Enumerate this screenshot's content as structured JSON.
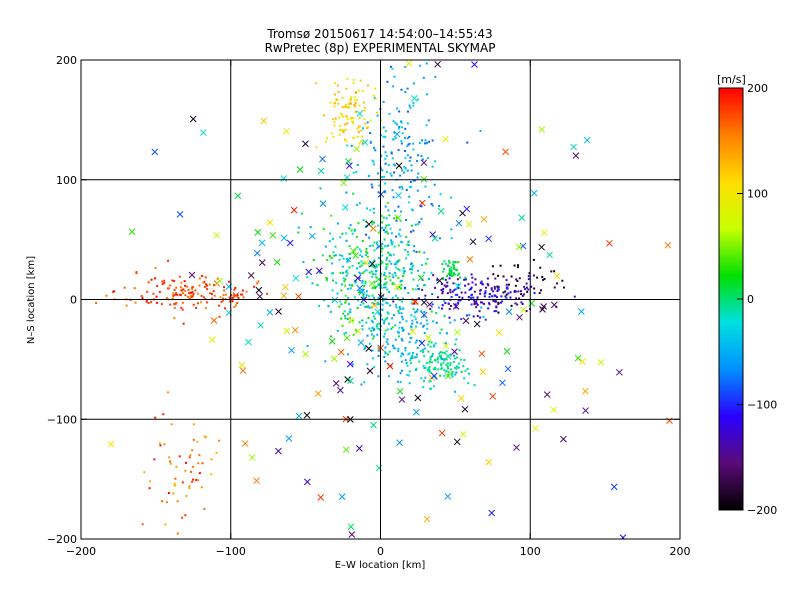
{
  "chart_data": {
    "type": "scatter",
    "title": "Tromsø 20150617 14:54:00–14:55:43",
    "subtitle": "RwPretec (8p) EXPERIMENTAL SKYMAP",
    "xlabel": "E–W location [km]",
    "ylabel": "N–S location [km]",
    "xlim": [
      -200,
      200
    ],
    "ylim": [
      -200,
      200
    ],
    "xticks": [
      -200,
      -100,
      0,
      100,
      200
    ],
    "yticks": [
      -200,
      -100,
      0,
      100,
      200
    ],
    "grid": true,
    "grid_values": {
      "x": [
        -100,
        0,
        100
      ],
      "y": [
        -100,
        0,
        100
      ]
    },
    "colorbar": {
      "label": "[m/s]",
      "min": -200,
      "max": 200,
      "ticks": [
        200,
        100,
        0,
        -100,
        -200
      ],
      "colormap": [
        "#000000",
        "#5a0a78",
        "#2a00ff",
        "#0090ff",
        "#00e0e0",
        "#00e000",
        "#c8ff00",
        "#ffdd00",
        "#ff7f00",
        "#ff0000"
      ]
    },
    "clusters": [
      {
        "name": "west-red-band",
        "cx": -128,
        "cy": 5,
        "sx": 22,
        "sy": 8,
        "n": 160,
        "vmin": 150,
        "vmax": 200,
        "marker": "dot"
      },
      {
        "name": "central",
        "cx": -5,
        "cy": 20,
        "sx": 18,
        "sy": 28,
        "n": 420,
        "vmin": -60,
        "vmax": 40,
        "marker": "dot"
      },
      {
        "name": "north-column",
        "cx": 12,
        "cy": 110,
        "sx": 14,
        "sy": 40,
        "n": 220,
        "vmin": -90,
        "vmax": -20,
        "marker": "dot"
      },
      {
        "name": "north-yellow",
        "cx": -22,
        "cy": 155,
        "sx": 8,
        "sy": 14,
        "n": 110,
        "vmin": 80,
        "vmax": 140,
        "marker": "dot"
      },
      {
        "name": "east-blue",
        "cx": 65,
        "cy": 5,
        "sx": 20,
        "sy": 8,
        "n": 190,
        "vmin": -160,
        "vmax": -90,
        "marker": "dot"
      },
      {
        "name": "east-green",
        "cx": 48,
        "cy": 25,
        "sx": 4,
        "sy": 4,
        "n": 40,
        "vmin": 0,
        "vmax": 20,
        "marker": "dot"
      },
      {
        "name": "south-green",
        "cx": 40,
        "cy": -55,
        "sx": 10,
        "sy": 8,
        "n": 110,
        "vmin": -20,
        "vmax": 10,
        "marker": "dot"
      },
      {
        "name": "south-cyan",
        "cx": 15,
        "cy": -30,
        "sx": 18,
        "sy": 20,
        "n": 170,
        "vmin": -70,
        "vmax": -30,
        "marker": "dot"
      },
      {
        "name": "southwest-red",
        "cx": -130,
        "cy": -140,
        "sx": 12,
        "sy": 25,
        "n": 60,
        "vmin": 120,
        "vmax": 200,
        "marker": "dot"
      },
      {
        "name": "far-black-east",
        "cx": 95,
        "cy": 15,
        "sx": 15,
        "sy": 10,
        "n": 40,
        "vmin": -200,
        "vmax": -170,
        "marker": "dot"
      },
      {
        "name": "scattered-x",
        "cx": 0,
        "cy": 0,
        "sx": 80,
        "sy": 90,
        "n": 230,
        "vmin": -200,
        "vmax": 200,
        "marker": "x"
      }
    ]
  }
}
